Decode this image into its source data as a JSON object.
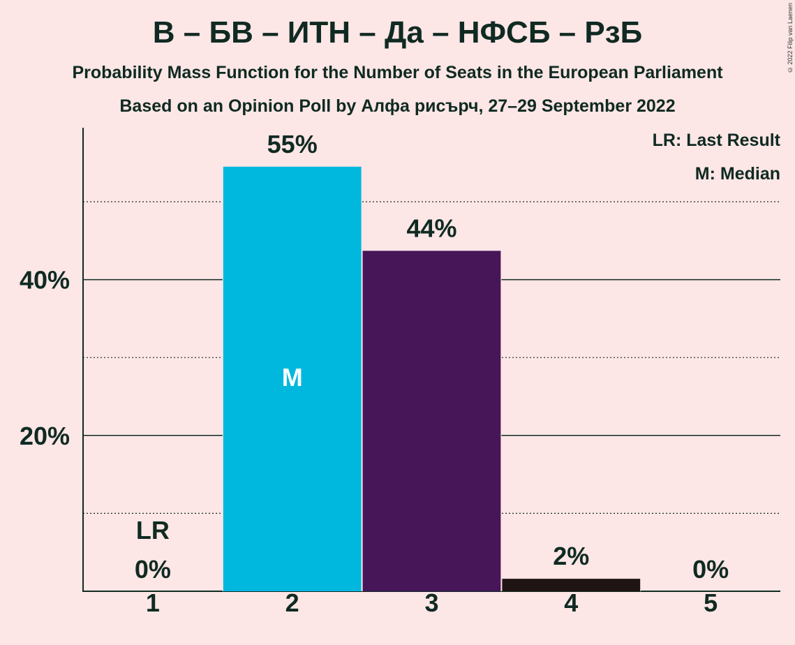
{
  "title": "В – БВ – ИТН – Да – НФСБ – РзБ",
  "subtitle": "Probability Mass Function for the Number of Seats in the European Parliament",
  "subtitle2": "Based on an Opinion Poll by Алфа рисърч, 27–29 September 2022",
  "copyright": "© 2022 Filip van Laenen",
  "legend": {
    "last_result": "LR: Last Result",
    "median": "M: Median"
  },
  "colors": {
    "background": "#fde6e6",
    "bar_2": "#00b8de",
    "bar_3": "#461658",
    "bar_4": "#1f1414",
    "text": "#0f2a22"
  },
  "chart_data": {
    "type": "bar",
    "categories": [
      "1",
      "2",
      "3",
      "4",
      "5"
    ],
    "values": [
      0,
      54.5,
      43.7,
      1.6,
      0
    ],
    "value_labels": [
      "0%",
      "55%",
      "44%",
      "2%",
      "0%"
    ],
    "bar_colors": [
      "#00b8de",
      "#00b8de",
      "#461658",
      "#1f1414",
      "#1f1414"
    ],
    "ylim": [
      0,
      59.5
    ],
    "yticks": [
      20,
      40
    ],
    "ytick_labels": [
      "20%",
      "40%"
    ],
    "minor_gridlines": [
      10,
      30,
      50
    ],
    "markers": [
      {
        "category": "1",
        "label": "LR"
      },
      {
        "category": "2",
        "label": "M"
      }
    ],
    "grid": true,
    "legend_position": "top-right"
  }
}
